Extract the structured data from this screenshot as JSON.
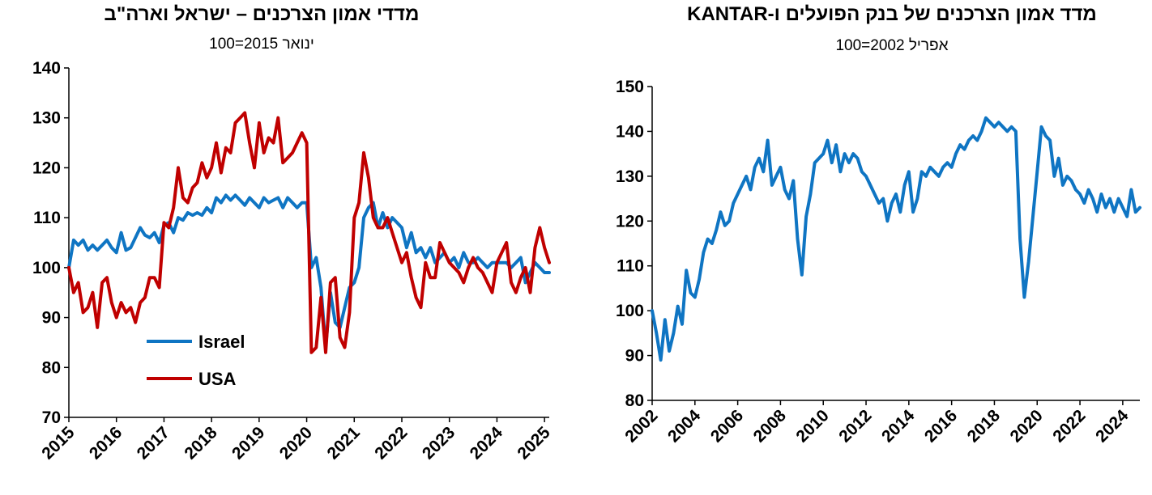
{
  "chart_data": [
    {
      "type": "line",
      "title": "מדדי אמון הצרכנים – ישראל וארה\"ב",
      "subtitle": "ינואר 2015=100",
      "xlim": [
        2015,
        2025.1
      ],
      "ylim": [
        70,
        140
      ],
      "x_ticks": [
        "2015",
        "2016",
        "2017",
        "2018",
        "2019",
        "2020",
        "2021",
        "2022",
        "2023",
        "2024",
        "2025"
      ],
      "y_ticks": [
        "70",
        "80",
        "90",
        "100",
        "110",
        "120",
        "130",
        "140"
      ],
      "legend": "inside-bottom-left",
      "grid": false,
      "series": [
        {
          "name": "Israel",
          "color": "#0f75c3",
          "x": [
            2015.0,
            2015.1,
            2015.2,
            2015.3,
            2015.4,
            2015.5,
            2015.6,
            2015.7,
            2015.8,
            2015.9,
            2016.0,
            2016.1,
            2016.2,
            2016.3,
            2016.4,
            2016.5,
            2016.6,
            2016.7,
            2016.8,
            2016.9,
            2017.0,
            2017.1,
            2017.2,
            2017.3,
            2017.4,
            2017.5,
            2017.6,
            2017.7,
            2017.8,
            2017.9,
            2018.0,
            2018.1,
            2018.2,
            2018.3,
            2018.4,
            2018.5,
            2018.6,
            2018.7,
            2018.8,
            2018.9,
            2019.0,
            2019.1,
            2019.2,
            2019.3,
            2019.4,
            2019.5,
            2019.6,
            2019.7,
            2019.8,
            2019.9,
            2020.0,
            2020.1,
            2020.2,
            2020.3,
            2020.4,
            2020.5,
            2020.6,
            2020.7,
            2020.8,
            2020.9,
            2021.0,
            2021.1,
            2021.2,
            2021.3,
            2021.4,
            2021.5,
            2021.6,
            2021.7,
            2021.8,
            2021.9,
            2022.0,
            2022.1,
            2022.2,
            2022.3,
            2022.4,
            2022.5,
            2022.6,
            2022.7,
            2022.8,
            2022.9,
            2023.0,
            2023.1,
            2023.2,
            2023.3,
            2023.4,
            2023.5,
            2023.6,
            2023.7,
            2023.8,
            2023.9,
            2024.0,
            2024.1,
            2024.2,
            2024.3,
            2024.4,
            2024.5,
            2024.6,
            2024.7,
            2024.8,
            2024.9,
            2025.0,
            2025.1
          ],
          "values": [
            100,
            105.5,
            104.5,
            105.5,
            103.5,
            104.5,
            103.5,
            104.5,
            105.5,
            104,
            103,
            107,
            103.5,
            104,
            106,
            108,
            106.5,
            106,
            107,
            105,
            108.5,
            109,
            107,
            110,
            109.5,
            111,
            110.5,
            111,
            110.5,
            112,
            111,
            114,
            113,
            114.5,
            113.5,
            114.5,
            113.5,
            112.5,
            114,
            113,
            112,
            114,
            113,
            113.5,
            114,
            112,
            114,
            113,
            112,
            113,
            113,
            100,
            102,
            96,
            84,
            95,
            89,
            88,
            92,
            96,
            97,
            100,
            110,
            112,
            113,
            108,
            111,
            108,
            110,
            109,
            108,
            104,
            107,
            103,
            104,
            102,
            104,
            101,
            102,
            103,
            101,
            102,
            100,
            103,
            101,
            101,
            102,
            101,
            100,
            101,
            101,
            101,
            101,
            100,
            101,
            102,
            97,
            99,
            101,
            100,
            99,
            99
          ]
        },
        {
          "name": "USA",
          "color": "#c00000",
          "x": [
            2015.0,
            2015.1,
            2015.2,
            2015.3,
            2015.4,
            2015.5,
            2015.6,
            2015.7,
            2015.8,
            2015.9,
            2016.0,
            2016.1,
            2016.2,
            2016.3,
            2016.4,
            2016.5,
            2016.6,
            2016.7,
            2016.8,
            2016.9,
            2017.0,
            2017.1,
            2017.2,
            2017.3,
            2017.4,
            2017.5,
            2017.6,
            2017.7,
            2017.8,
            2017.9,
            2018.0,
            2018.1,
            2018.2,
            2018.3,
            2018.4,
            2018.5,
            2018.6,
            2018.7,
            2018.8,
            2018.9,
            2019.0,
            2019.1,
            2019.2,
            2019.3,
            2019.4,
            2019.5,
            2019.6,
            2019.7,
            2019.8,
            2019.9,
            2020.0,
            2020.1,
            2020.2,
            2020.3,
            2020.4,
            2020.5,
            2020.6,
            2020.7,
            2020.8,
            2020.9,
            2021.0,
            2021.1,
            2021.2,
            2021.3,
            2021.4,
            2021.5,
            2021.6,
            2021.7,
            2021.8,
            2021.9,
            2022.0,
            2022.1,
            2022.2,
            2022.3,
            2022.4,
            2022.5,
            2022.6,
            2022.7,
            2022.8,
            2022.9,
            2023.0,
            2023.1,
            2023.2,
            2023.3,
            2023.4,
            2023.5,
            2023.6,
            2023.7,
            2023.8,
            2023.9,
            2024.0,
            2024.1,
            2024.2,
            2024.3,
            2024.4,
            2024.5,
            2024.6,
            2024.7,
            2024.8,
            2024.9,
            2025.0,
            2025.1
          ],
          "values": [
            100,
            95,
            97,
            91,
            92,
            95,
            88,
            97,
            98,
            93,
            90,
            93,
            91,
            92,
            89,
            93,
            94,
            98,
            98,
            96,
            109,
            108,
            112,
            120,
            114,
            113,
            116,
            117,
            121,
            118,
            120,
            125,
            119,
            124,
            123,
            129,
            130,
            131,
            125,
            120,
            129,
            123,
            126,
            125,
            130,
            121,
            122,
            123,
            125,
            127,
            125,
            83,
            84,
            94,
            83,
            97,
            98,
            86,
            84,
            91,
            110,
            113,
            123,
            118,
            110,
            108,
            108,
            110,
            107,
            104,
            101,
            103,
            98,
            94,
            92,
            101,
            98,
            98,
            105,
            103,
            101,
            100,
            99,
            97,
            100,
            102,
            100,
            99,
            97,
            95,
            101,
            103,
            105,
            97,
            95,
            98,
            100,
            95,
            104,
            108,
            104,
            101
          ]
        }
      ]
    },
    {
      "type": "line",
      "title": "מדד אמון הצרכנים של בנק הפועלים ו-KANTAR",
      "subtitle": "אפריל  2002=100",
      "xlim": [
        2002,
        2024.8
      ],
      "ylim": [
        80,
        150
      ],
      "x_ticks": [
        "2002",
        "2004",
        "2006",
        "2008",
        "2010",
        "2012",
        "2014",
        "2016",
        "2018",
        "2020",
        "2022",
        "2024"
      ],
      "y_ticks": [
        "80",
        "90",
        "100",
        "110",
        "120",
        "130",
        "140",
        "150"
      ],
      "grid": false,
      "series": [
        {
          "color": "#0f75c3",
          "x": [
            2002.0,
            2002.2,
            2002.4,
            2002.6,
            2002.8,
            2003.0,
            2003.2,
            2003.4,
            2003.6,
            2003.8,
            2004.0,
            2004.2,
            2004.4,
            2004.6,
            2004.8,
            2005.0,
            2005.2,
            2005.4,
            2005.6,
            2005.8,
            2006.0,
            2006.2,
            2006.4,
            2006.6,
            2006.8,
            2007.0,
            2007.2,
            2007.4,
            2007.6,
            2007.8,
            2008.0,
            2008.2,
            2008.4,
            2008.6,
            2008.8,
            2009.0,
            2009.2,
            2009.4,
            2009.6,
            2009.8,
            2010.0,
            2010.2,
            2010.4,
            2010.6,
            2010.8,
            2011.0,
            2011.2,
            2011.4,
            2011.6,
            2011.8,
            2012.0,
            2012.2,
            2012.4,
            2012.6,
            2012.8,
            2013.0,
            2013.2,
            2013.4,
            2013.6,
            2013.8,
            2014.0,
            2014.2,
            2014.4,
            2014.6,
            2014.8,
            2015.0,
            2015.2,
            2015.4,
            2015.6,
            2015.8,
            2016.0,
            2016.2,
            2016.4,
            2016.6,
            2016.8,
            2017.0,
            2017.2,
            2017.4,
            2017.6,
            2017.8,
            2018.0,
            2018.2,
            2018.4,
            2018.6,
            2018.8,
            2019.0,
            2019.2,
            2019.4,
            2019.6,
            2019.8,
            2020.0,
            2020.2,
            2020.4,
            2020.6,
            2020.8,
            2021.0,
            2021.2,
            2021.4,
            2021.6,
            2021.8,
            2022.0,
            2022.2,
            2022.4,
            2022.6,
            2022.8,
            2023.0,
            2023.2,
            2023.4,
            2023.6,
            2023.8,
            2024.0,
            2024.2,
            2024.4,
            2024.6,
            2024.8
          ],
          "values": [
            100,
            95,
            89,
            98,
            91,
            95,
            101,
            97,
            109,
            104,
            103,
            107,
            113,
            116,
            115,
            118,
            122,
            119,
            120,
            124,
            126,
            128,
            130,
            127,
            132,
            134,
            131,
            138,
            128,
            130,
            132,
            127,
            125,
            129,
            116,
            108,
            121,
            126,
            133,
            134,
            135,
            138,
            133,
            137,
            131,
            135,
            133,
            135,
            134,
            131,
            130,
            128,
            126,
            124,
            125,
            120,
            124,
            126,
            122,
            128,
            131,
            122,
            125,
            131,
            130,
            132,
            131,
            130,
            132,
            133,
            132,
            135,
            137,
            136,
            138,
            139,
            138,
            140,
            143,
            142,
            141,
            142,
            141,
            140,
            141,
            140,
            116,
            103,
            111,
            121,
            131,
            141,
            139,
            138,
            130,
            134,
            128,
            130,
            129,
            127,
            126,
            124,
            127,
            125,
            122,
            126,
            123,
            125,
            122,
            125,
            123,
            121,
            127,
            122,
            123
          ]
        }
      ]
    }
  ]
}
